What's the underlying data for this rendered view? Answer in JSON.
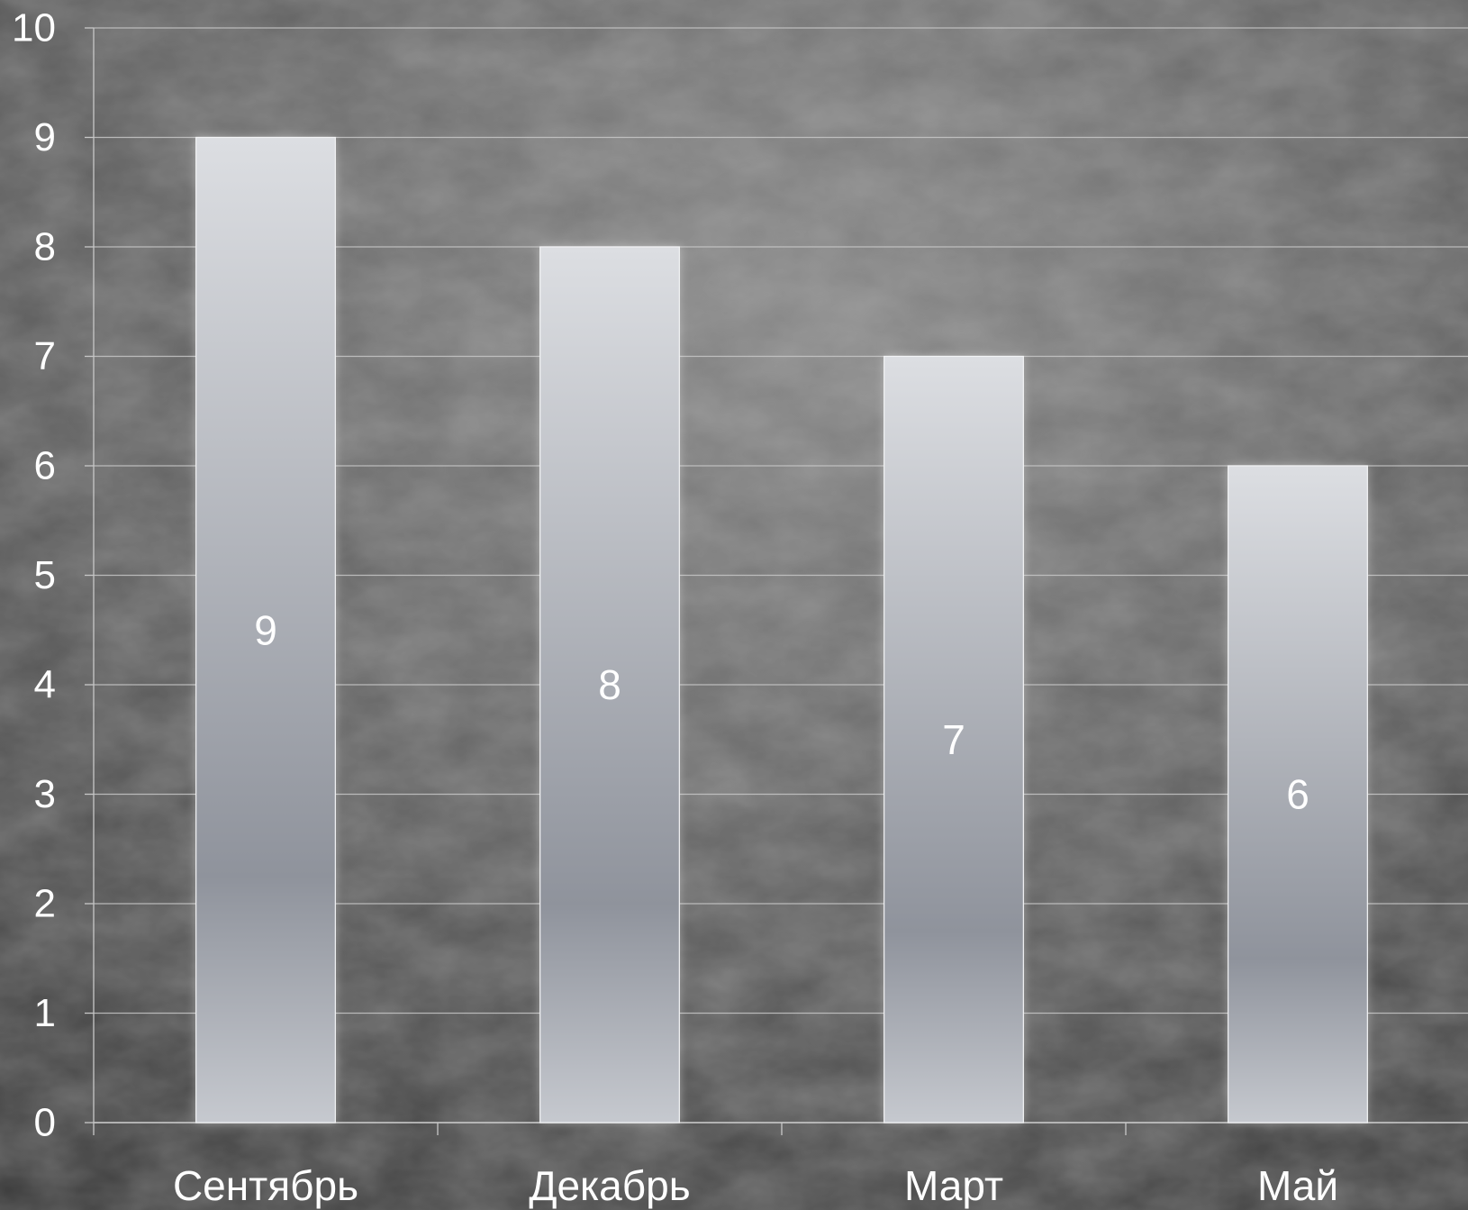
{
  "chart_data": {
    "type": "bar",
    "categories": [
      "Сентябрь",
      "Декабрь",
      "Март",
      "Май"
    ],
    "values": [
      9,
      8,
      7,
      6
    ],
    "data_labels": [
      "9",
      "8",
      "7",
      "6"
    ],
    "ylim": [
      0,
      10
    ],
    "yticks": [
      0,
      1,
      2,
      3,
      4,
      5,
      6,
      7,
      8,
      9,
      10
    ],
    "ytick_labels": [
      "0",
      "1",
      "2",
      "3",
      "4",
      "5",
      "6",
      "7",
      "8",
      "9",
      "10"
    ],
    "grid": true,
    "legend": "none",
    "title": "",
    "xlabel": "",
    "ylabel": ""
  },
  "colors": {
    "background": "#4a4a4a",
    "bar_top": "#dcdee2",
    "bar_mid": "#8f939c",
    "bar_bottom": "#c6c9cf",
    "gridline": "#c8c8c8",
    "text": "#ffffff"
  }
}
